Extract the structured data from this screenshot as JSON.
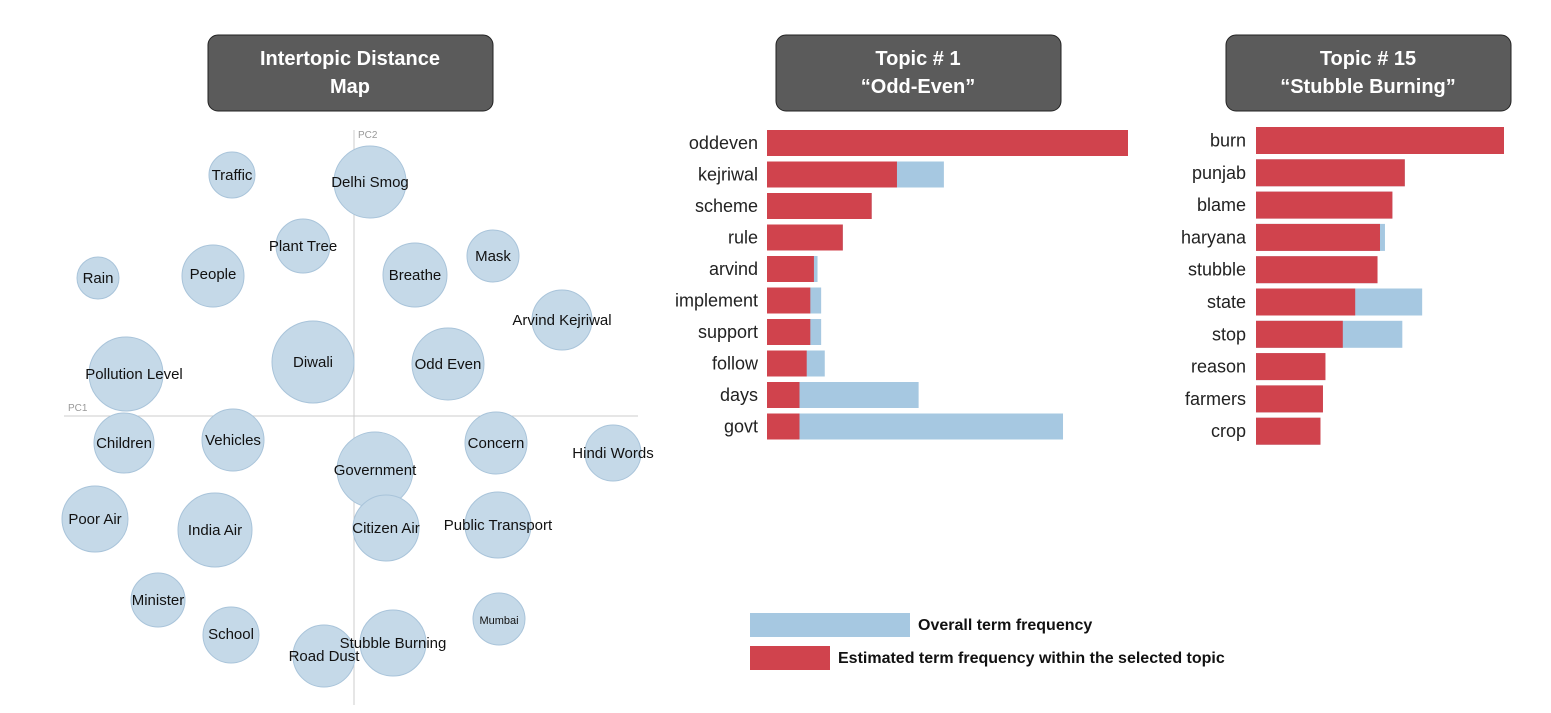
{
  "colors": {
    "header_bg": "#5b5b5b",
    "bubble_fill": "#c5d9e8",
    "bubble_stroke": "#a9c4da",
    "overall_bar": "#a6c8e1",
    "topic_bar": "#d0434d",
    "axis_line": "#cccccc"
  },
  "headers": {
    "map": {
      "line1": "Intertopic Distance",
      "line2": "Map"
    },
    "topic1": {
      "line1": "Topic # 1",
      "line2": "“Odd-Even”"
    },
    "topic15": {
      "line1": "Topic # 15",
      "line2": "“Stubble Burning”"
    }
  },
  "legend": {
    "overall": "Overall term frequency",
    "topic": "Estimated term frequency within the selected topic"
  },
  "chart_data": [
    {
      "type": "scatter",
      "title": "Intertopic Distance Map",
      "xlabel": "PC1",
      "ylabel": "PC2",
      "topics": [
        {
          "label": "Traffic",
          "size": "small"
        },
        {
          "label": "Delhi Smog",
          "size": "large"
        },
        {
          "label": "Plant Tree",
          "size": "small"
        },
        {
          "label": "Mask",
          "size": "small"
        },
        {
          "label": "Rain",
          "size": "small"
        },
        {
          "label": "People",
          "size": "medium"
        },
        {
          "label": "Breathe",
          "size": "medium"
        },
        {
          "label": "Arvind Kejriwal",
          "size": "small"
        },
        {
          "label": "Diwali",
          "size": "large"
        },
        {
          "label": "Odd Even",
          "size": "medium"
        },
        {
          "label": "Pollution Level",
          "size": "large"
        },
        {
          "label": "Children",
          "size": "small"
        },
        {
          "label": "Vehicles",
          "size": "small"
        },
        {
          "label": "Concern",
          "size": "small"
        },
        {
          "label": "Hindi Words",
          "size": "small"
        },
        {
          "label": "Government",
          "size": "large"
        },
        {
          "label": "Poor Air",
          "size": "medium"
        },
        {
          "label": "India Air",
          "size": "medium"
        },
        {
          "label": "Citizen Air",
          "size": "medium"
        },
        {
          "label": "Public Transport",
          "size": "medium"
        },
        {
          "label": "Minister",
          "size": "small"
        },
        {
          "label": "School",
          "size": "small"
        },
        {
          "label": "Road Dust",
          "size": "small"
        },
        {
          "label": "Stubble Burning",
          "size": "medium"
        },
        {
          "label": "Mumbai",
          "size": "small"
        }
      ]
    },
    {
      "type": "bar",
      "orientation": "horizontal",
      "title": "Topic # 1 “Odd-Even”",
      "categories": [
        "oddeven",
        "kejriwal",
        "scheme",
        "rule",
        "arvind",
        "implement",
        "support",
        "follow",
        "days",
        "govt"
      ],
      "series": [
        {
          "name": "Overall term frequency",
          "values": [
            100,
            49,
            29,
            21,
            14,
            15,
            15,
            16,
            42,
            82
          ]
        },
        {
          "name": "Estimated term frequency within the selected topic",
          "values": [
            100,
            36,
            29,
            21,
            13,
            12,
            12,
            11,
            9,
            9
          ]
        }
      ],
      "xlim": [
        0,
        100
      ]
    },
    {
      "type": "bar",
      "orientation": "horizontal",
      "title": "Topic # 15 “Stubble Burning”",
      "categories": [
        "burn",
        "punjab",
        "blame",
        "haryana",
        "stubble",
        "state",
        "stop",
        "reason",
        "farmers",
        "crop"
      ],
      "series": [
        {
          "name": "Overall term frequency",
          "values": [
            100,
            60,
            55,
            52,
            49,
            67,
            59,
            28,
            27,
            26
          ]
        },
        {
          "name": "Estimated term frequency within the selected topic",
          "values": [
            100,
            60,
            55,
            50,
            49,
            40,
            35,
            28,
            27,
            26
          ]
        }
      ],
      "xlim": [
        0,
        100
      ]
    }
  ]
}
